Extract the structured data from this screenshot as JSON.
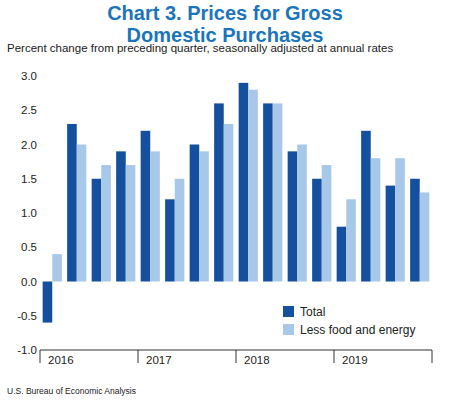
{
  "chart_data": {
    "type": "bar",
    "title": "Chart 3. Prices for Gross Domestic Purchases",
    "subtitle": "Percent change from preceding quarter, seasonally adjusted at annual rates",
    "source": "U.S. Bureau of Economic Analysis",
    "categories": [
      "2016",
      null,
      null,
      null,
      "2017",
      null,
      null,
      null,
      "2018",
      null,
      null,
      null,
      "2019",
      null,
      null,
      null
    ],
    "series": [
      {
        "name": "Total",
        "color": "#14509e",
        "values": [
          -0.6,
          2.3,
          1.5,
          1.9,
          2.2,
          1.2,
          2.0,
          2.6,
          2.9,
          2.6,
          1.9,
          1.5,
          0.8,
          2.2,
          1.4,
          1.5
        ]
      },
      {
        "name": "Less food and energy",
        "color": "#a8c8ea",
        "values": [
          0.4,
          2.0,
          1.7,
          1.7,
          1.9,
          1.5,
          1.9,
          2.3,
          2.8,
          2.6,
          2.0,
          1.7,
          1.2,
          1.8,
          1.8,
          1.3
        ]
      }
    ],
    "ylim": [
      -1,
      3
    ],
    "yticks": [
      {
        "value": 3,
        "label": "3.0"
      },
      2.5,
      {
        "value": 2,
        "label": "2.0"
      },
      1.5,
      {
        "value": 1,
        "label": "1.0"
      },
      0.5,
      {
        "value": 0,
        "label": "0.0"
      },
      -0.5,
      {
        "value": -1,
        "label": "-1.0"
      }
    ],
    "grid": false,
    "legend": "lower right"
  }
}
